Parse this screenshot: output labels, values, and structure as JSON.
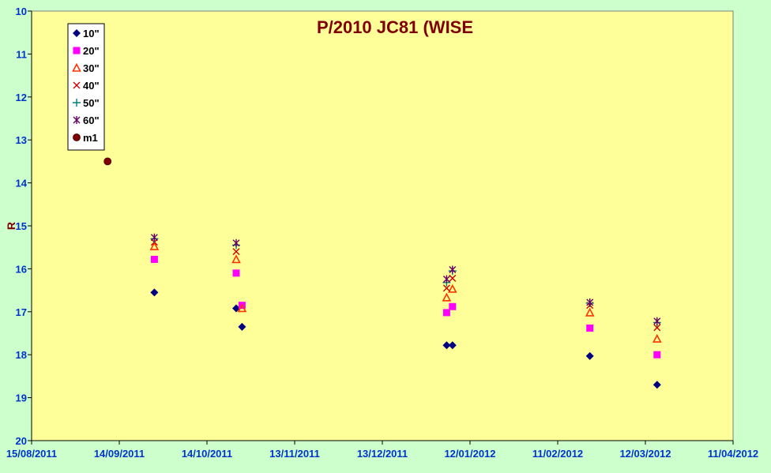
{
  "chart_data": {
    "type": "scatter",
    "title": "P/2010 JC81 (WISE",
    "xlabel": "",
    "ylabel": "R",
    "x_ticks": [
      "15/08/2011",
      "14/09/2011",
      "14/10/2011",
      "13/11/2011",
      "13/12/2011",
      "12/01/2012",
      "11/02/2012",
      "12/03/2012",
      "11/04/2012"
    ],
    "xlim": [
      "2011-08-15",
      "2012-04-11"
    ],
    "ylim": [
      10,
      20
    ],
    "y_inverted": true,
    "y_ticks": [
      10,
      11,
      12,
      13,
      14,
      15,
      16,
      17,
      18,
      19,
      20
    ],
    "grid": false,
    "legend_position": "top-left",
    "series": [
      {
        "name": "10\"",
        "marker": "diamond",
        "color": "#000080",
        "points": [
          [
            "2011-09-26",
            16.55
          ],
          [
            "2011-10-24",
            16.92
          ],
          [
            "2011-10-26",
            17.35
          ],
          [
            "2012-01-04",
            17.78
          ],
          [
            "2012-01-06",
            17.78
          ],
          [
            "2012-02-22",
            18.03
          ],
          [
            "2012-03-16",
            18.7
          ]
        ]
      },
      {
        "name": "20\"",
        "marker": "square",
        "color": "#ff00ff",
        "points": [
          [
            "2011-09-26",
            15.78
          ],
          [
            "2011-10-24",
            16.1
          ],
          [
            "2011-10-26",
            16.85
          ],
          [
            "2012-01-04",
            17.02
          ],
          [
            "2012-01-06",
            16.88
          ],
          [
            "2012-02-22",
            17.38
          ],
          [
            "2012-03-16",
            18.0
          ]
        ]
      },
      {
        "name": "30\"",
        "marker": "triangle",
        "color": "#ff3300",
        "points": [
          [
            "2011-09-26",
            15.48
          ],
          [
            "2011-10-24",
            15.78
          ],
          [
            "2011-10-26",
            16.92
          ],
          [
            "2012-01-04",
            16.67
          ],
          [
            "2012-01-06",
            16.47
          ],
          [
            "2012-02-22",
            17.02
          ],
          [
            "2012-03-16",
            17.63
          ]
        ]
      },
      {
        "name": "40\"",
        "marker": "x",
        "color": "#cc0000",
        "points": [
          [
            "2011-09-26",
            15.38
          ],
          [
            "2011-10-24",
            15.6
          ],
          [
            "2012-01-04",
            16.45
          ],
          [
            "2012-01-06",
            16.22
          ],
          [
            "2012-02-22",
            16.85
          ],
          [
            "2012-03-16",
            17.37
          ]
        ]
      },
      {
        "name": "50\"",
        "marker": "plus",
        "color": "#008080",
        "points": [
          [
            "2011-09-26",
            15.3
          ],
          [
            "2011-10-24",
            15.45
          ],
          [
            "2012-01-04",
            16.32
          ],
          [
            "2012-01-06",
            16.05
          ],
          [
            "2012-02-22",
            16.8
          ],
          [
            "2012-03-16",
            17.25
          ]
        ]
      },
      {
        "name": "60\"",
        "marker": "star",
        "color": "#660066",
        "points": [
          [
            "2011-09-26",
            15.27
          ],
          [
            "2011-10-24",
            15.4
          ],
          [
            "2012-01-04",
            16.24
          ],
          [
            "2012-01-06",
            16.02
          ],
          [
            "2012-02-22",
            16.78
          ],
          [
            "2012-03-16",
            17.22
          ]
        ]
      },
      {
        "name": "m1",
        "marker": "circle",
        "color": "#800000",
        "points": [
          [
            "2011-09-10",
            13.5
          ]
        ]
      }
    ]
  }
}
